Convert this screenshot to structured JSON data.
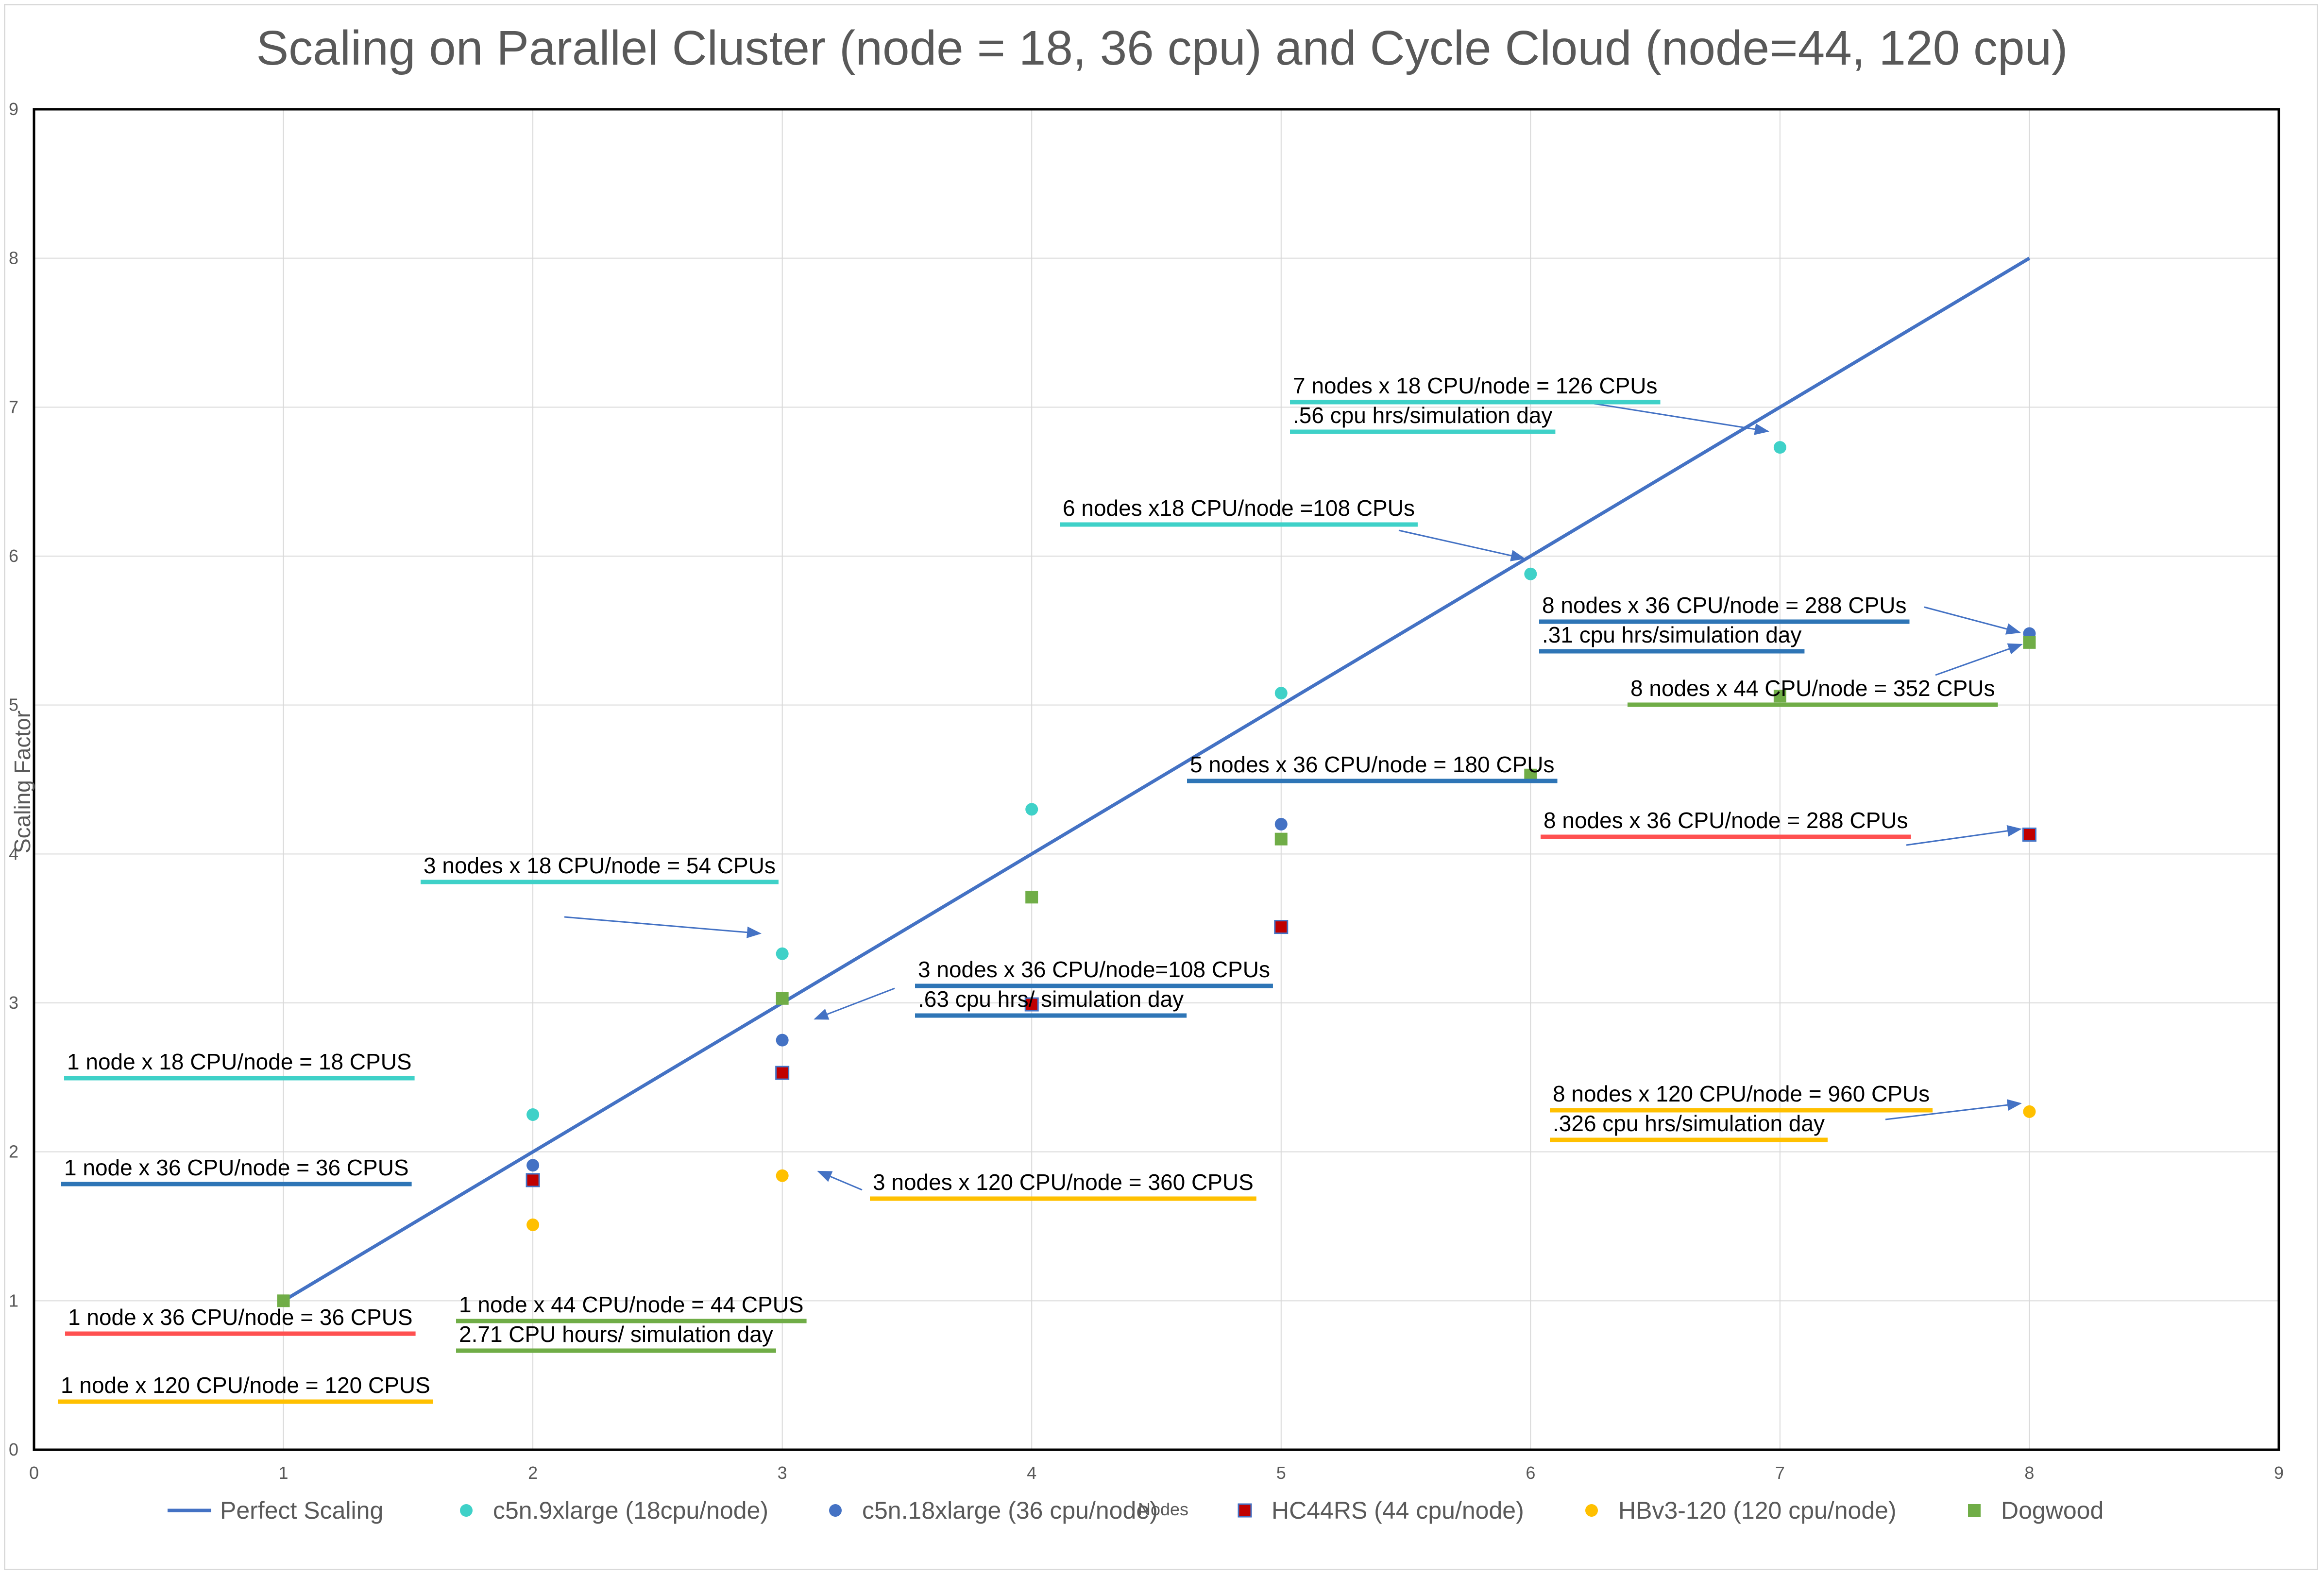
{
  "chart_data": {
    "type": "scatter",
    "title": "Scaling on Parallel Cluster (node = 18, 36 cpu) and Cycle Cloud (node=44, 120 cpu)",
    "xlabel": "Nodes",
    "ylabel": "Scaling Factor",
    "xlim": [
      0,
      9
    ],
    "ylim": [
      0,
      9
    ],
    "x_ticks": [
      0,
      1,
      2,
      3,
      4,
      5,
      6,
      7,
      8,
      9
    ],
    "y_ticks": [
      0,
      1,
      2,
      3,
      4,
      5,
      6,
      7,
      8,
      9
    ],
    "grid": true,
    "legend_position": "bottom",
    "series": [
      {
        "name": "Perfect Scaling",
        "kind": "line",
        "color": "#4472C4",
        "x": [
          1,
          8
        ],
        "y": [
          1,
          8
        ]
      },
      {
        "name": "c5n.9xlarge (18cpu/node)",
        "kind": "circle",
        "color": "#3FD1C8",
        "x": [
          2,
          3,
          4,
          5,
          6,
          7
        ],
        "y": [
          2.25,
          3.33,
          4.3,
          5.08,
          5.88,
          6.73
        ]
      },
      {
        "name": "c5n.18xlarge (36 cpu/node)",
        "kind": "circle",
        "color": "#4472C4",
        "x": [
          2,
          3,
          5,
          8
        ],
        "y": [
          1.91,
          2.75,
          4.2,
          5.48
        ]
      },
      {
        "name": "HC44RS (44 cpu/node)",
        "kind": "square-red",
        "color": "#C00000",
        "x": [
          2,
          3,
          4,
          5,
          8
        ],
        "y": [
          1.81,
          2.53,
          2.99,
          3.51,
          4.13
        ]
      },
      {
        "name": "HBv3-120 (120 cpu/node)",
        "kind": "circle",
        "color": "#FFC000",
        "x": [
          2,
          3,
          8
        ],
        "y": [
          1.51,
          1.84,
          2.27
        ]
      },
      {
        "name": "Dogwood",
        "kind": "square",
        "color": "#70AD47",
        "x": [
          1,
          3,
          4,
          5,
          6,
          7,
          8
        ],
        "y": [
          1.0,
          3.03,
          3.71,
          4.1,
          4.53,
          5.06,
          5.42
        ]
      }
    ],
    "annotations": [
      {
        "lines": [
          "7 nodes x 18 CPU/node = 126 CPUs",
          ".56 cpu hrs/simulation day"
        ],
        "underline": "#3FD1C8"
      },
      {
        "lines": [
          "6 nodes x18 CPU/node =108 CPUs"
        ],
        "underline": "#3FD1C8"
      },
      {
        "lines": [
          "8 nodes x 36 CPU/node = 288 CPUs",
          ".31 cpu hrs/simulation day"
        ],
        "underline": "#2E75B6"
      },
      {
        "lines": [
          "8 nodes x 44 CPU/node = 352 CPUs"
        ],
        "underline": "#70AD47"
      },
      {
        "lines": [
          "5 nodes x 36 CPU/node = 180 CPUs"
        ],
        "underline": "#2E75B6"
      },
      {
        "lines": [
          "8 nodes x 36 CPU/node = 288 CPUs"
        ],
        "underline": "#FF5050"
      },
      {
        "lines": [
          "3 nodes x 18 CPU/node = 54 CPUs"
        ],
        "underline": "#3FD1C8"
      },
      {
        "lines": [
          "3 nodes x 36 CPU/node=108 CPUs",
          ".63 cpu hrs/ simulation day"
        ],
        "underline": "#2E75B6"
      },
      {
        "lines": [
          "1 node x 18 CPU/node = 18 CPUS"
        ],
        "underline": "#3FD1C8"
      },
      {
        "lines": [
          "8 nodes x 120 CPU/node = 960 CPUs",
          ".326 cpu hrs/simulation day"
        ],
        "underline": "#FFC000"
      },
      {
        "lines": [
          "1 node x 36 CPU/node = 36 CPUS"
        ],
        "underline": "#2E75B6"
      },
      {
        "lines": [
          "3 nodes x 120 CPU/node = 360 CPUS"
        ],
        "underline": "#FFC000"
      },
      {
        "lines": [
          "1 node x 36 CPU/node = 36 CPUS"
        ],
        "underline": "#FF5050"
      },
      {
        "lines": [
          "1 node x 44 CPU/node = 44 CPUS",
          "2.71 CPU hours/ simulation day"
        ],
        "underline": "#70AD47"
      },
      {
        "lines": [
          "1 node x 120 CPU/node = 120 CPUS"
        ],
        "underline": "#FFC000"
      }
    ]
  }
}
